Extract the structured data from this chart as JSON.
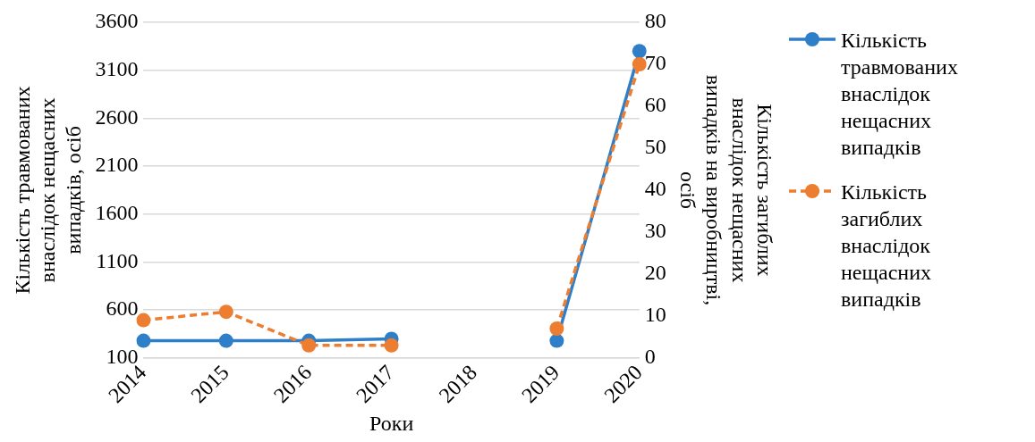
{
  "chart_data": {
    "type": "line",
    "xlabel": "Роки",
    "ylabel": "Кількість травмованих внаслідок нещасних випадків, осіб",
    "y2label": "Кількість загиблих внаслідок нещасних випадків на виробництві, осіб",
    "categories": [
      "2014",
      "2015",
      "2016",
      "2017",
      "2018",
      "2019",
      "2020"
    ],
    "series": [
      {
        "name": "Кількість травмованих внаслідок нещасних випадків",
        "color": "#2f7fc8",
        "values": [
          280,
          280,
          280,
          300,
          null,
          280,
          3300
        ],
        "line_style": "solid"
      },
      {
        "name": "Кількість загиблих внаслідок нещасних випадків",
        "color": "#ed7d31",
        "values": [
          9,
          11,
          3,
          3,
          null,
          7,
          70
        ],
        "axis": "y2",
        "line_style": "dashed"
      }
    ],
    "ylim": [
      100,
      3600
    ],
    "yticks": [
      100,
      600,
      1100,
      1600,
      2100,
      2600,
      3100,
      3600
    ],
    "y2lim": [
      0,
      80
    ],
    "y2ticks": [
      0,
      10,
      20,
      30,
      40,
      50,
      60,
      70,
      80
    ],
    "grid": "y",
    "legend": "right",
    "marker": "circle"
  }
}
